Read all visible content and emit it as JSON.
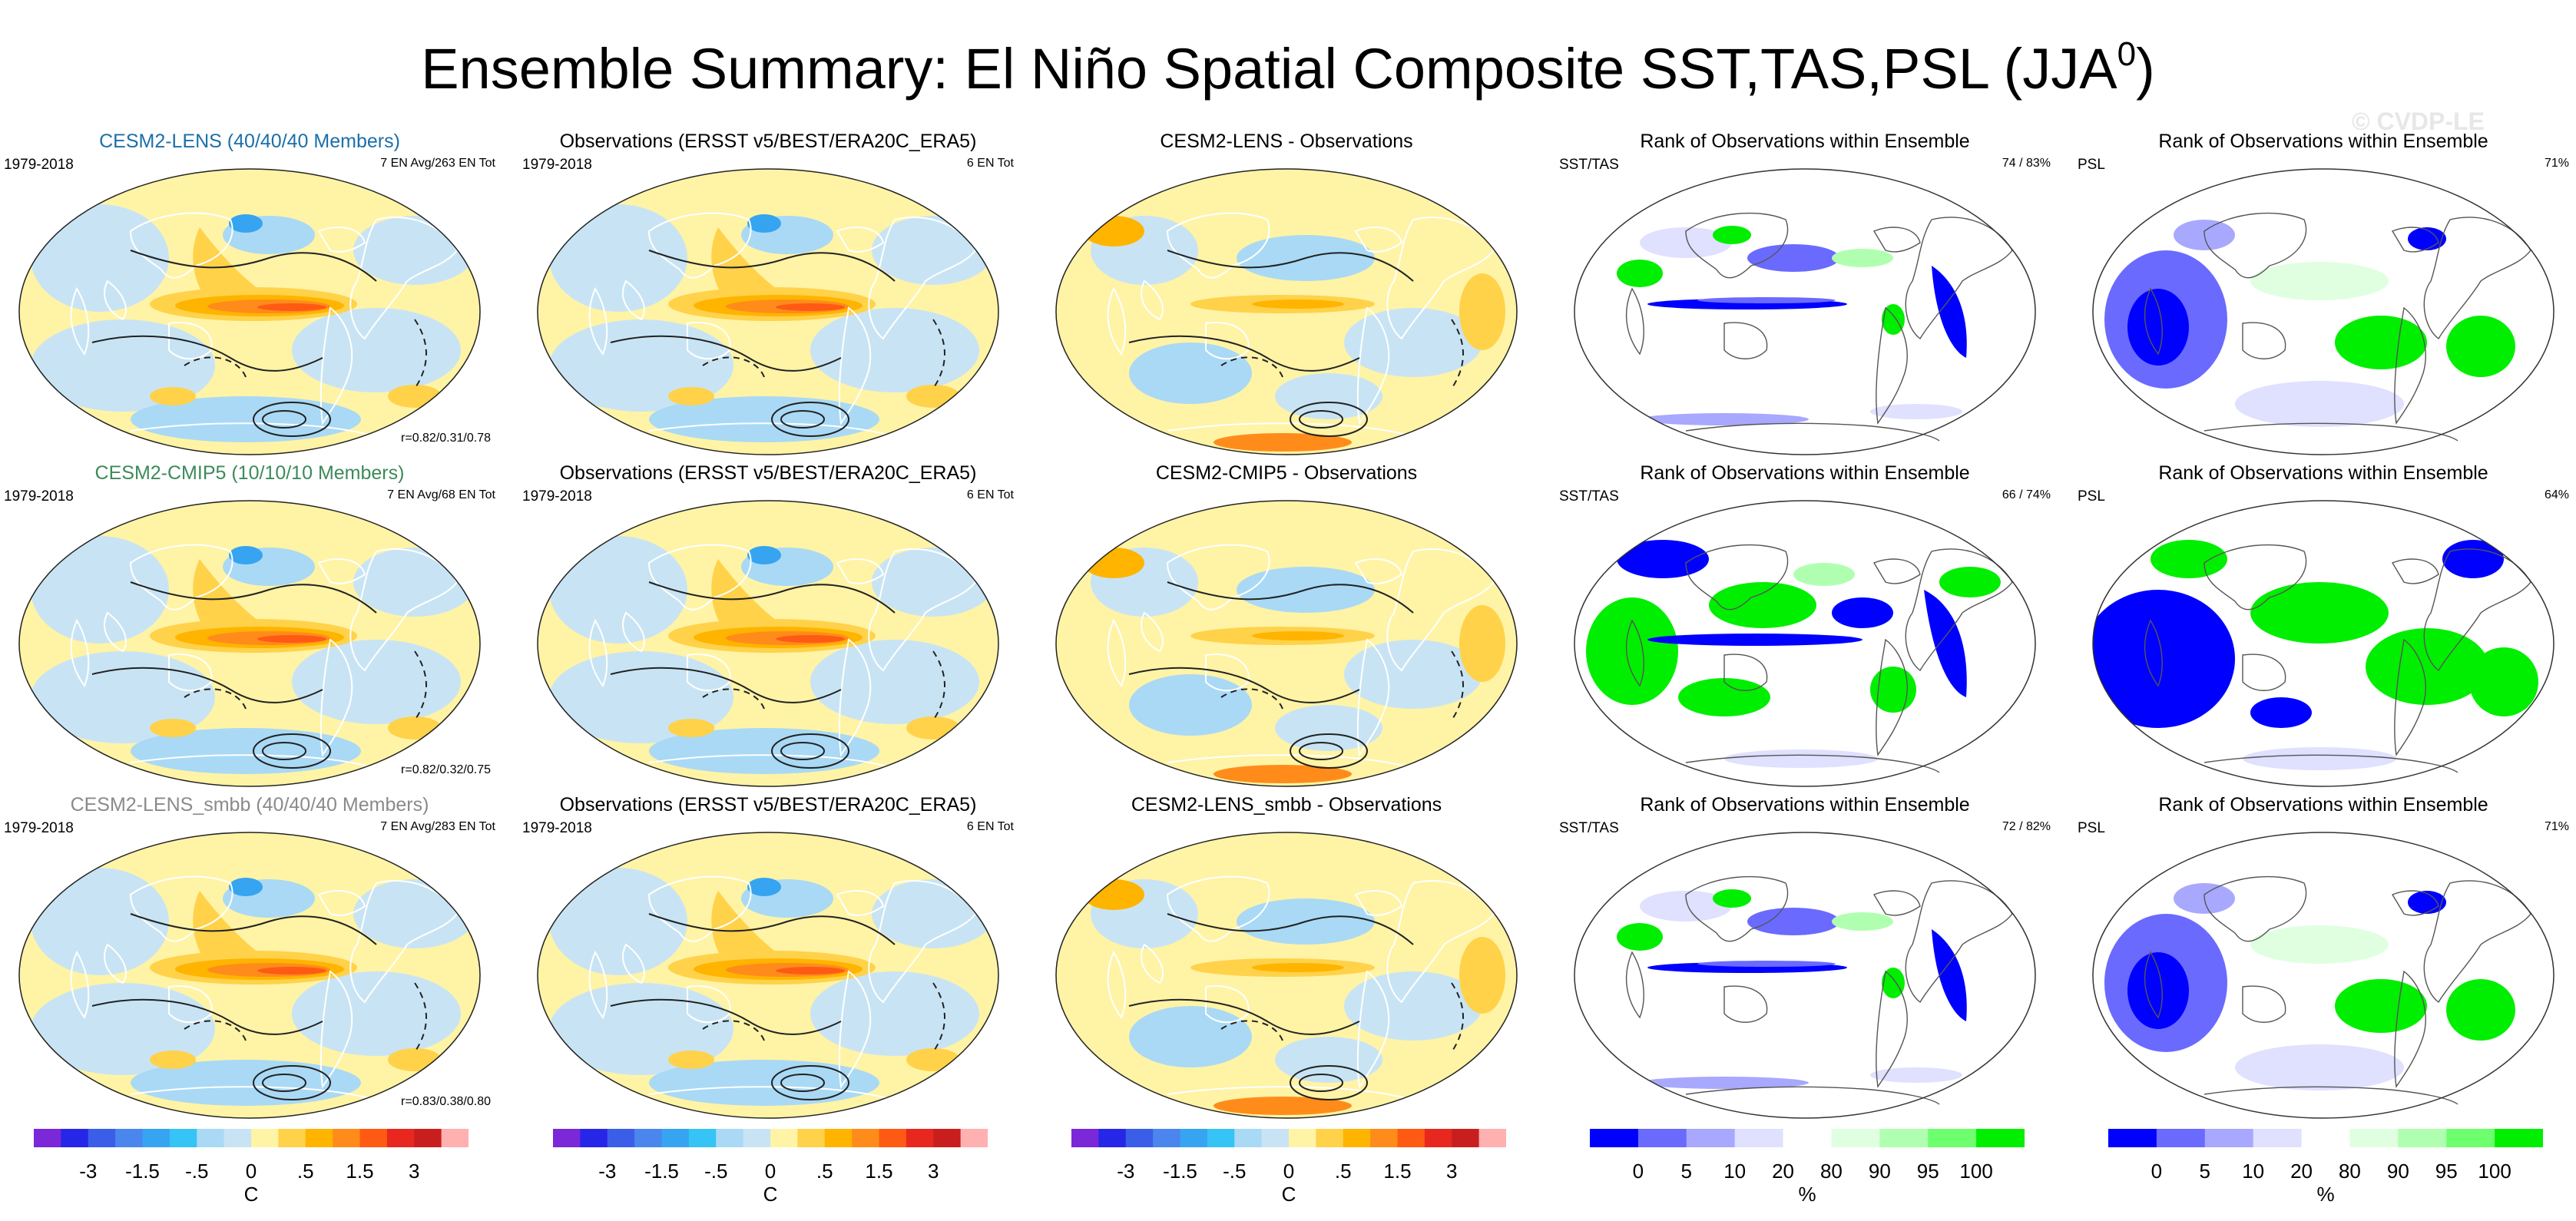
{
  "title_main": "Ensemble Summary: El Niño Spatial Composite SST,TAS,PSL (JJA",
  "title_sup": "0",
  "title_end": ")",
  "watermark": "© CVDP-LE",
  "colors": {
    "anomaly_scale": [
      "#7a28d8",
      "#2626e8",
      "#3b5ee8",
      "#4a86ee",
      "#36a4f0",
      "#36c3f5",
      "#a9d9f5",
      "#c8e4f4",
      "#fff3a6",
      "#ffd24a",
      "#ffb400",
      "#ff8c1a",
      "#ff5a14",
      "#e8281e",
      "#c81e1e",
      "#ffb0b0"
    ],
    "rank_scale": [
      "#0000ff",
      "#6a6aff",
      "#a8a8ff",
      "#e0e0ff",
      "#ffffff",
      "#e0ffe0",
      "#b0ffb0",
      "#6eff6e",
      "#00ee00"
    ],
    "title_lens": "#1b6fa8",
    "title_cmip": "#3d8a5a",
    "title_smbb": "#8a8a8a"
  },
  "chart_data": [
    {
      "type": "heatmap",
      "panel": "row1-col1",
      "title": "CESM2-LENS (40/40/40 Members)",
      "period": "1979-2018",
      "note": "7 EN Avg/263 EN Tot",
      "pattern_correlation": "r=0.82/0.31/0.78",
      "variables": [
        "SST",
        "TAS",
        "PSL"
      ],
      "units": "C",
      "field": "El Niño composite anomaly"
    },
    {
      "type": "heatmap",
      "panel": "row1-col2",
      "title": "Observations (ERSST v5/BEST/ERA20C_ERA5)",
      "period": "1979-2018",
      "note": "6 EN Tot",
      "units": "C",
      "field": "El Niño composite anomaly"
    },
    {
      "type": "heatmap",
      "panel": "row1-col3",
      "title": "CESM2-LENS - Observations",
      "units": "C",
      "field": "difference"
    },
    {
      "type": "heatmap",
      "panel": "row1-col4",
      "title": "Rank of Observations within Ensemble",
      "variable_label": "SST/TAS",
      "note": "74 /  83%",
      "units": "%"
    },
    {
      "type": "heatmap",
      "panel": "row1-col5",
      "title": "Rank of Observations within Ensemble",
      "variable_label": "PSL",
      "note": "71%",
      "units": "%"
    },
    {
      "type": "heatmap",
      "panel": "row2-col1",
      "title": "CESM2-CMIP5 (10/10/10 Members)",
      "period": "1979-2018",
      "note": "7 EN Avg/68 EN Tot",
      "pattern_correlation": "r=0.82/0.32/0.75",
      "units": "C"
    },
    {
      "type": "heatmap",
      "panel": "row2-col2",
      "title": "Observations (ERSST v5/BEST/ERA20C_ERA5)",
      "period": "1979-2018",
      "note": "6 EN Tot",
      "units": "C"
    },
    {
      "type": "heatmap",
      "panel": "row2-col3",
      "title": "CESM2-CMIP5 - Observations",
      "units": "C"
    },
    {
      "type": "heatmap",
      "panel": "row2-col4",
      "title": "Rank of Observations within Ensemble",
      "variable_label": "SST/TAS",
      "note": "66 /  74%",
      "units": "%"
    },
    {
      "type": "heatmap",
      "panel": "row2-col5",
      "title": "Rank of Observations within Ensemble",
      "variable_label": "PSL",
      "note": "64%",
      "units": "%"
    },
    {
      "type": "heatmap",
      "panel": "row3-col1",
      "title": "CESM2-LENS_smbb (40/40/40 Members)",
      "period": "1979-2018",
      "note": "7 EN Avg/283 EN Tot",
      "pattern_correlation": "r=0.83/0.38/0.80",
      "units": "C"
    },
    {
      "type": "heatmap",
      "panel": "row3-col2",
      "title": "Observations (ERSST v5/BEST/ERA20C_ERA5)",
      "period": "1979-2018",
      "note": "6 EN Tot",
      "units": "C"
    },
    {
      "type": "heatmap",
      "panel": "row3-col3",
      "title": "CESM2-LENS_smbb - Observations",
      "units": "C"
    },
    {
      "type": "heatmap",
      "panel": "row3-col4",
      "title": "Rank of Observations within Ensemble",
      "variable_label": "SST/TAS",
      "note": "72 /  82%",
      "units": "%"
    },
    {
      "type": "heatmap",
      "panel": "row3-col5",
      "title": "Rank of Observations within Ensemble",
      "variable_label": "PSL",
      "note": "71%",
      "units": "%"
    }
  ],
  "colorbars": {
    "anomaly": {
      "labels": [
        "-3",
        "-1.5",
        "-.5",
        "0",
        ".5",
        "1.5",
        "3"
      ],
      "label_bin_index": [
        2,
        4,
        6,
        8,
        10,
        12,
        14
      ],
      "n_bins": 16,
      "units": "C"
    },
    "rank": {
      "labels": [
        "0",
        "5",
        "10",
        "20",
        "80",
        "90",
        "95",
        "100"
      ],
      "label_bin_index": [
        0,
        1,
        2,
        3,
        4,
        5,
        6,
        7
      ],
      "n_bins": 9,
      "units": "%"
    }
  }
}
